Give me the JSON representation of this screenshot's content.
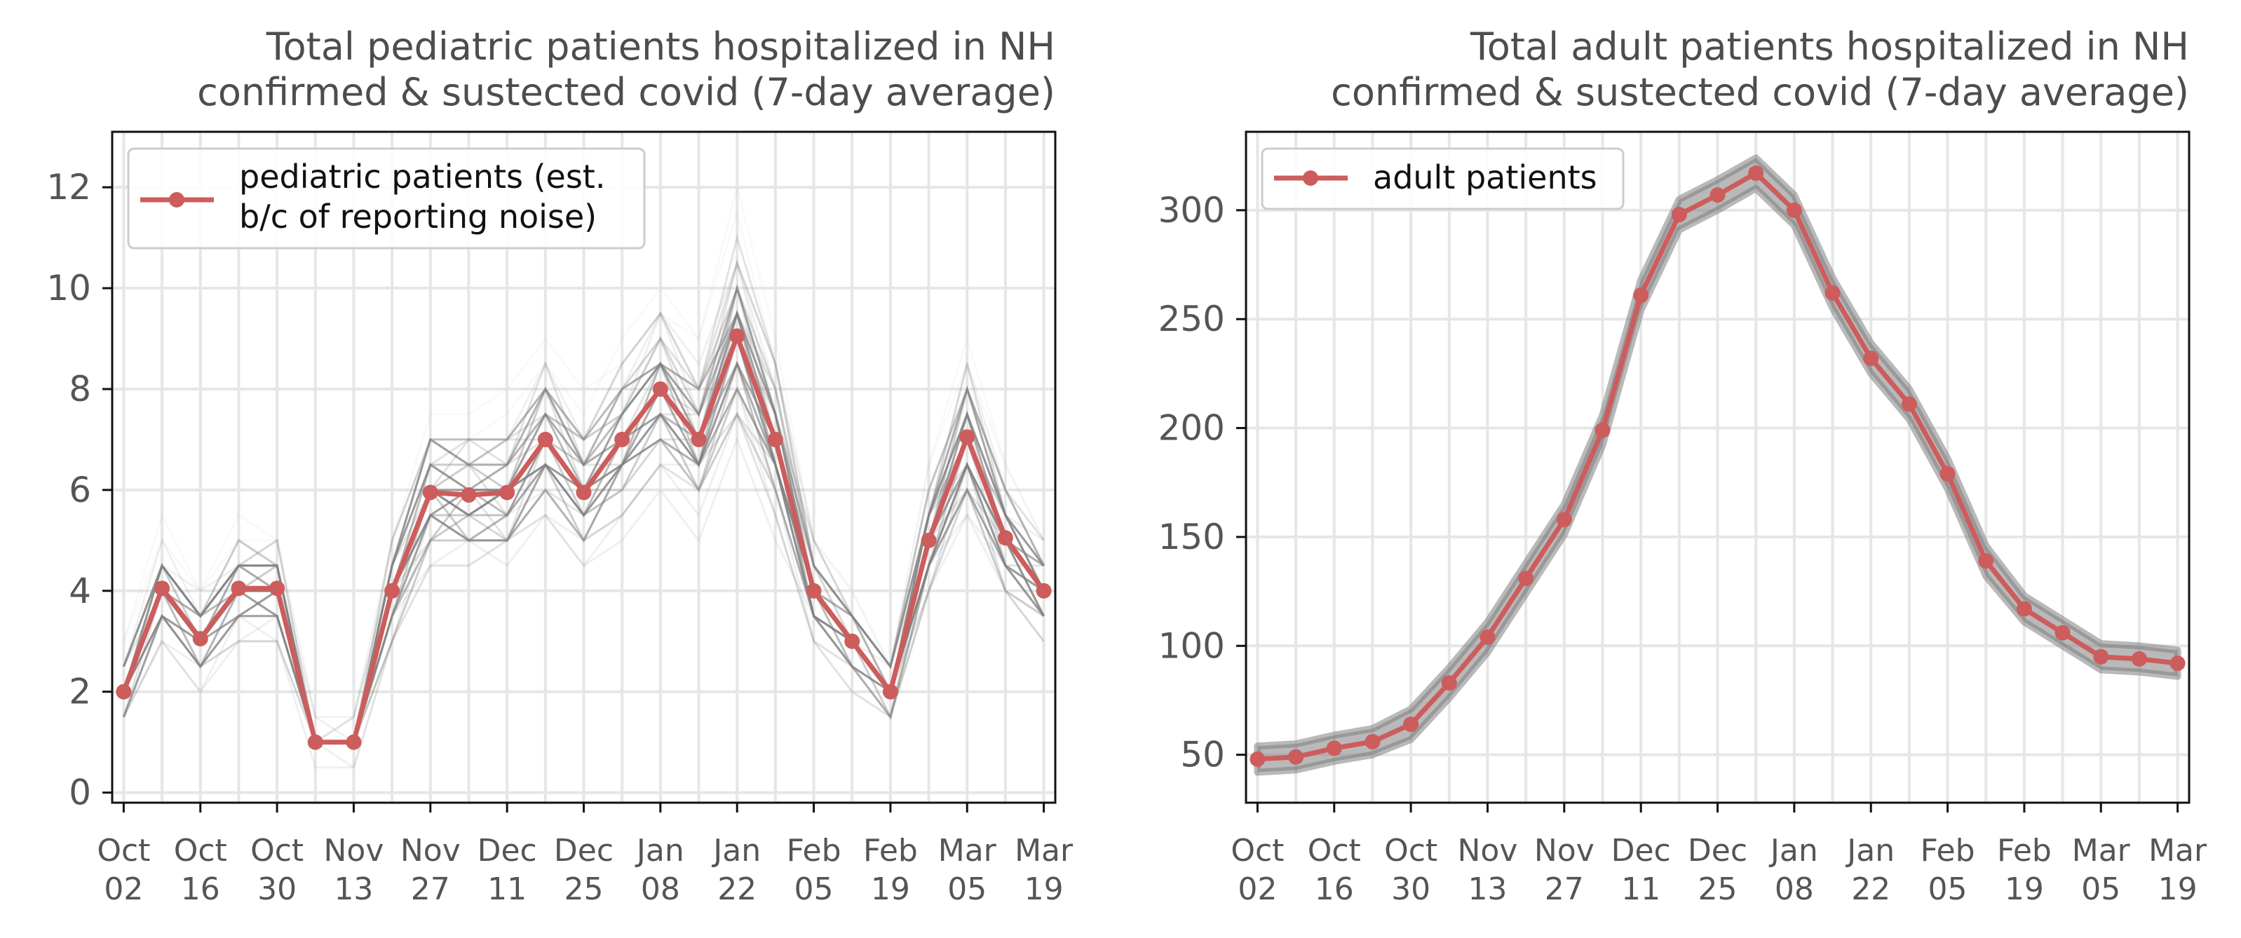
{
  "colors": {
    "accent": "#cd5c5c",
    "ensemble": "#808080",
    "grid": "#e6e6e6",
    "text": "#555555"
  },
  "chart_data": [
    {
      "type": "line",
      "title_line1": "Total pediatric patients hospitalized in NH",
      "title_line2": "confirmed & sustected covid (7-day average)",
      "legend_line1": "pediatric patients (est.",
      "legend_line2": "b/c of reporting noise)",
      "legend_position": "top-left",
      "grid": true,
      "ylim": [
        -0.2,
        13.1
      ],
      "yticks": [
        0,
        2,
        4,
        6,
        8,
        10,
        12
      ],
      "xlim": [
        -0.3,
        24.3
      ],
      "x_labels": [
        {
          "top": "Oct",
          "bottom": "02",
          "x": 0
        },
        {
          "top": "Oct",
          "bottom": "16",
          "x": 2
        },
        {
          "top": "Oct",
          "bottom": "30",
          "x": 4
        },
        {
          "top": "Nov",
          "bottom": "13",
          "x": 6
        },
        {
          "top": "Nov",
          "bottom": "27",
          "x": 8
        },
        {
          "top": "Dec",
          "bottom": "11",
          "x": 10
        },
        {
          "top": "Dec",
          "bottom": "25",
          "x": 12
        },
        {
          "top": "Jan",
          "bottom": "08",
          "x": 14
        },
        {
          "top": "Jan",
          "bottom": "22",
          "x": 16
        },
        {
          "top": "Feb",
          "bottom": "05",
          "x": 18
        },
        {
          "top": "Feb",
          "bottom": "19",
          "x": 20
        },
        {
          "top": "Mar",
          "bottom": "05",
          "x": 22
        },
        {
          "top": "Mar",
          "bottom": "19",
          "x": 24
        }
      ],
      "series": [
        {
          "name": "pediatric patients (est. b/c of reporting noise)",
          "x": [
            0,
            1,
            2,
            3,
            4,
            5,
            6,
            7,
            8,
            9,
            10,
            11,
            12,
            13,
            14,
            15,
            16,
            17,
            18,
            19,
            20,
            21,
            22,
            23,
            24
          ],
          "values": [
            2.0,
            4.05,
            3.05,
            4.05,
            4.05,
            1.0,
            1.0,
            4.0,
            5.95,
            5.9,
            5.95,
            7.0,
            5.95,
            7.0,
            8.0,
            7.0,
            9.05,
            7.0,
            4.0,
            3.0,
            2.0,
            5.0,
            7.05,
            5.05,
            4.0
          ]
        }
      ],
      "ensemble_spread": [
        1.2,
        1.6,
        1.4,
        1.7,
        1.6,
        0.5,
        0.5,
        1.6,
        2.3,
        2.2,
        2.3,
        2.6,
        2.3,
        2.6,
        2.9,
        2.6,
        3.4,
        2.7,
        1.6,
        1.3,
        1.0,
        2.0,
        2.6,
        2.0,
        1.6
      ]
    },
    {
      "type": "line",
      "title_line1": "Total adult patients hospitalized in NH",
      "title_line2": "confirmed & sustected covid (7-day average)",
      "legend_line1": "adult patients",
      "legend_position": "top-left",
      "grid": true,
      "ylim": [
        28,
        336
      ],
      "yticks": [
        50,
        100,
        150,
        200,
        250,
        300
      ],
      "xlim": [
        -0.3,
        24.3
      ],
      "x_labels": [
        {
          "top": "Oct",
          "bottom": "02",
          "x": 0
        },
        {
          "top": "Oct",
          "bottom": "16",
          "x": 2
        },
        {
          "top": "Oct",
          "bottom": "30",
          "x": 4
        },
        {
          "top": "Nov",
          "bottom": "13",
          "x": 6
        },
        {
          "top": "Nov",
          "bottom": "27",
          "x": 8
        },
        {
          "top": "Dec",
          "bottom": "11",
          "x": 10
        },
        {
          "top": "Dec",
          "bottom": "25",
          "x": 12
        },
        {
          "top": "Jan",
          "bottom": "08",
          "x": 14
        },
        {
          "top": "Jan",
          "bottom": "22",
          "x": 16
        },
        {
          "top": "Feb",
          "bottom": "05",
          "x": 18
        },
        {
          "top": "Feb",
          "bottom": "19",
          "x": 20
        },
        {
          "top": "Mar",
          "bottom": "05",
          "x": 22
        },
        {
          "top": "Mar",
          "bottom": "19",
          "x": 24
        }
      ],
      "series": [
        {
          "name": "adult patients",
          "x": [
            0,
            1,
            2,
            3,
            4,
            5,
            6,
            7,
            8,
            9,
            10,
            11,
            12,
            13,
            14,
            15,
            16,
            17,
            18,
            19,
            20,
            21,
            22,
            23,
            24
          ],
          "values": [
            48,
            49,
            53,
            56,
            64,
            83,
            104,
            131,
            158,
            199,
            261,
            298,
            307,
            317,
            300,
            262,
            232,
            211,
            179,
            139,
            117,
            106,
            95,
            94,
            92
          ]
        }
      ],
      "ensemble_spread": [
        6,
        6,
        6,
        6,
        7,
        7,
        7,
        7,
        7,
        7,
        7,
        7,
        7,
        7,
        7,
        7,
        7,
        7,
        7,
        7,
        6,
        6,
        6,
        6,
        6
      ]
    }
  ]
}
